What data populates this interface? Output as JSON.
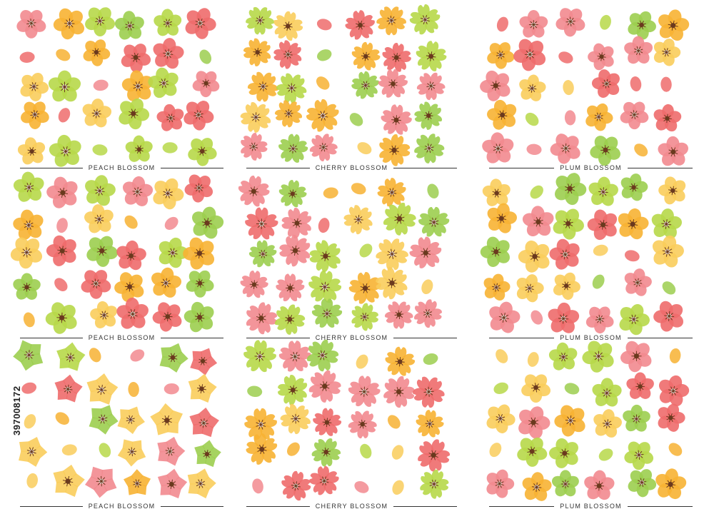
{
  "panels": [
    {
      "label": "PEACH BLOSSOM"
    },
    {
      "label": "CHERRY BLOSSOM"
    },
    {
      "label": "PLUM BLOSSOM"
    },
    {
      "label": "PEACH BLOSSOM"
    },
    {
      "label": "CHERRY BLOSSOM"
    },
    {
      "label": "PLUM BLOSSOM"
    },
    {
      "label": "PEACH BLOSSOM"
    },
    {
      "label": "CHERRY BLOSSOM"
    },
    {
      "label": "PLUM BLOSSOM"
    }
  ],
  "stock_id": "397008172",
  "palette": {
    "pink": "#f28a8f",
    "red": "#ee6c6c",
    "orange": "#f7b233",
    "yellow": "#f9cd5c",
    "lime": "#b7d849",
    "green": "#9cce4f",
    "center": "#6b3a1f",
    "text": "#333333"
  }
}
